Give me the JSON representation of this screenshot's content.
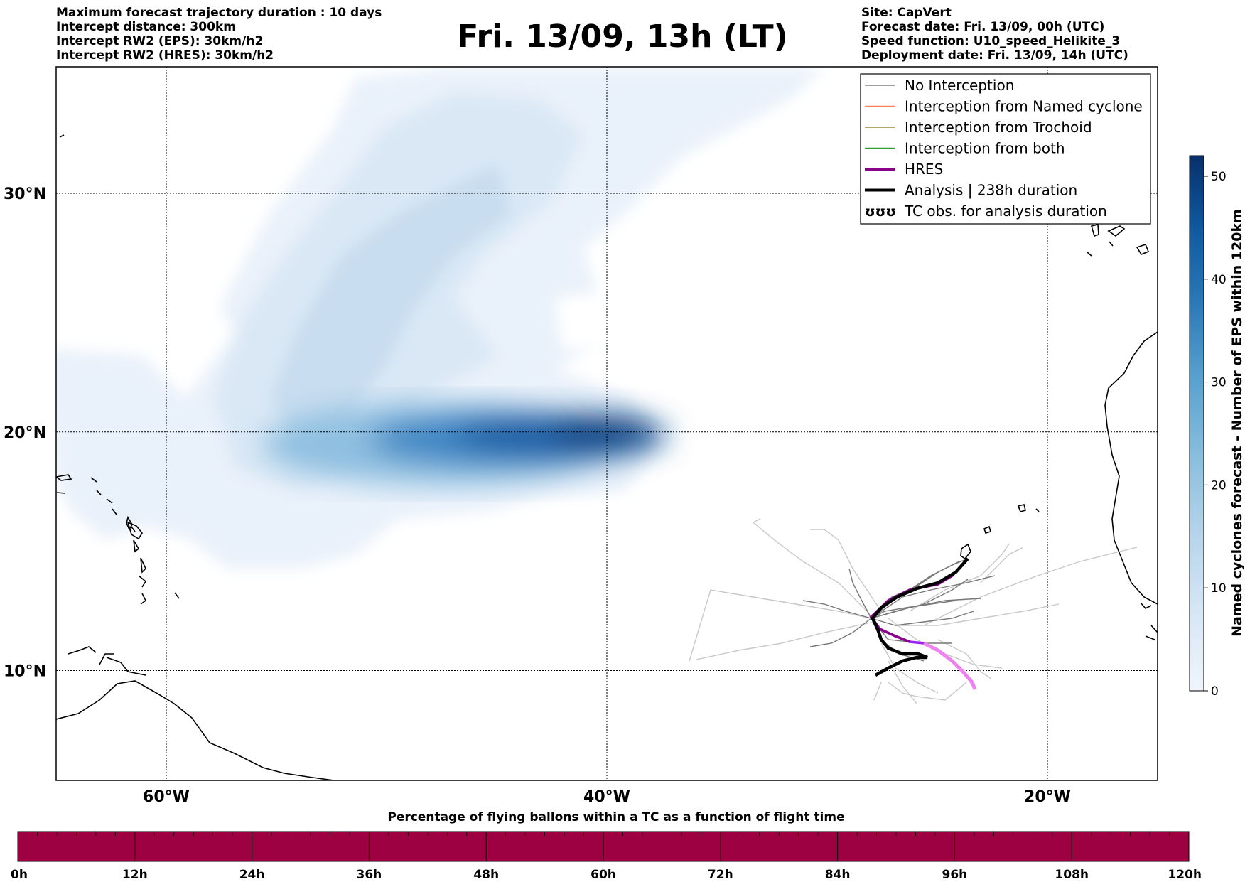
{
  "header": {
    "title": "Fri. 13/09, 13h (LT)",
    "left_lines": [
      "Maximum forecast trajectory duration : 10 days",
      "Intercept distance: 300km",
      "Intercept RW2 (EPS):  30km/h2",
      "Intercept RW2 (HRES): 30km/h2"
    ],
    "right_lines": [
      "Site: CapVert",
      "Forecast date: Fri. 13/09, 00h (UTC)",
      "Speed function: U10_speed_Helikite_3",
      "Deployment date: Fri. 13/09, 14h (UTC)"
    ]
  },
  "map": {
    "lat_labels": [
      "30°N",
      "20°N",
      "10°N"
    ],
    "lon_labels": [
      "60°W",
      "40°W",
      "20°W"
    ],
    "lat_values": [
      30,
      20,
      10
    ],
    "lon_values": [
      -60,
      -40,
      -20
    ],
    "extent": {
      "lon_min": -65,
      "lon_max": -15,
      "lat_min": 5.4,
      "lat_max": 35.3
    }
  },
  "legend": {
    "items": [
      {
        "label": "No Interception",
        "color": "#808080",
        "style": "thin"
      },
      {
        "label": "Interception from Named cyclone",
        "color": "#ff7f50",
        "style": "thin"
      },
      {
        "label": "Interception from Trochoid",
        "color": "#9a8c2a",
        "style": "thin"
      },
      {
        "label": "Interception from both",
        "color": "#2ca02c",
        "style": "thin"
      },
      {
        "label": "HRES",
        "color": "#8b008b",
        "style": "thick"
      },
      {
        "label": "Analysis | 238h duration",
        "color": "#000000",
        "style": "thick"
      },
      {
        "label": "TC obs. for analysis duration",
        "color": "#000000",
        "style": "symbol"
      }
    ]
  },
  "colorbar_right": {
    "label": "Named cyclones forecast - Number of EPS within 120km",
    "ticks": [
      "0",
      "10",
      "20",
      "30",
      "40",
      "50"
    ],
    "tick_values": [
      0,
      10,
      20,
      30,
      40,
      50
    ],
    "min": 0,
    "max": 52,
    "colors": [
      "#f0f5fc",
      "#d6e6f5",
      "#b4d3ea",
      "#85bcdc",
      "#539dcc",
      "#2c7ab8",
      "#0f5aa1",
      "#08306b"
    ]
  },
  "colorbar_bottom": {
    "label": "Percentage of flying ballons within a TC as a function of flight time",
    "ticks": [
      "0h",
      "12h",
      "24h",
      "36h",
      "48h",
      "60h",
      "72h",
      "84h",
      "96h",
      "108h",
      "120h"
    ],
    "fill_color": "#9e0142"
  }
}
